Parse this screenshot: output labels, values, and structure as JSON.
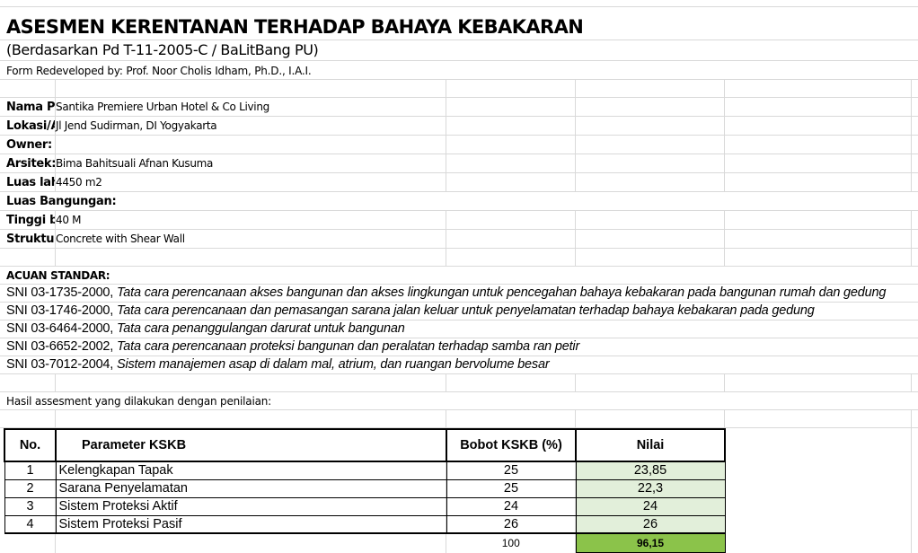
{
  "title": "ASESMEN KERENTANAN TERHADAP BAHAYA KEBAKARAN",
  "subtitle": "(Berdasarkan Pd T-11-2005-C / BaLitBang PU)",
  "credit": "Form Redeveloped by: Prof. Noor Cholis Idham, Ph.D., I.A.I.",
  "info": [
    {
      "label": "Nama P",
      "value": "Santika Premiere Urban Hotel & Co Living"
    },
    {
      "label": "Lokasi/A",
      "value": "Jl Jend Sudirman, DI Yogyakarta"
    },
    {
      "label": "Owner:",
      "value": ""
    },
    {
      "label": "Arsitek:",
      "value": " Bima Bahitsuali Afnan Kusuma"
    },
    {
      "label": "Luas lah",
      "value": "4450 m2"
    },
    {
      "label": "Luas Bangungan:",
      "value": ""
    },
    {
      "label": "Tinggi b",
      "value": " 40 M"
    },
    {
      "label": "Struktu",
      "value": " Concrete with Shear Wall"
    }
  ],
  "standards_heading": "ACUAN STANDAR:",
  "standards": [
    {
      "code": "SNI 03-1735-2000,",
      "desc": "Tata cara perencanaan akses bangunan dan akses lingkungan untuk pencegahan bahaya kebakaran pada bangunan rumah dan gedung"
    },
    {
      "code": "SNI 03-1746-2000,",
      "desc": "Tata cara perencanaan dan pemasangan sarana jalan keluar untuk penyelamatan terhadap bahaya kebakaran pada gedung"
    },
    {
      "code": "SNI 03-6464-2000,",
      "desc": "Tata cara penanggulangan darurat untuk bangunan"
    },
    {
      "code": "SNI 03-6652-2002,",
      "desc": "Tata cara perencanaan proteksi bangunan dan peralatan terhadap samba ran petir"
    },
    {
      "code": "SNI 03-7012-2004,",
      "desc": "Sistem manajemen asap di dalam mal, atrium, dan ruangan bervolume besar"
    }
  ],
  "result_intro": "Hasil assesment yang dilakukan dengan penilaian:",
  "table": {
    "headers": [
      "No.",
      "Parameter KSKB",
      "Bobot KSKB (%)",
      "Nilai"
    ],
    "rows": [
      {
        "no": "1",
        "param": "Kelengkapan Tapak",
        "bobot": "25",
        "nilai": "23,85"
      },
      {
        "no": "2",
        "param": "Sarana Penyelamatan",
        "bobot": "25",
        "nilai": "22,3"
      },
      {
        "no": "3",
        "param": "Sistem Proteksi Aktif",
        "bobot": "24",
        "nilai": "24"
      },
      {
        "no": "4",
        "param": "Sistem Proteksi Pasif",
        "bobot": "26",
        "nilai": "26"
      }
    ],
    "total_bobot": "100",
    "total_nilai": "96,15"
  },
  "colors": {
    "nilai_fill": "#e2efda",
    "total_fill": "#8bc34a",
    "grid": "#d9d9d9"
  }
}
